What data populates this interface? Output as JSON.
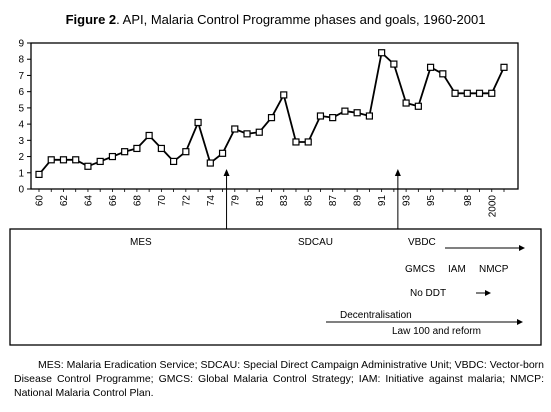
{
  "figure": {
    "label": "Figure 2",
    "title_rest": ". API, Malaria Control Programme phases and goals, 1960-2001"
  },
  "chart_data": {
    "type": "line",
    "title": "Figure 2. API, Malaria Control Programme phases and goals, 1960-2001",
    "xlabel": "",
    "ylabel": "",
    "ylim": [
      0,
      9
    ],
    "yticks": [
      0,
      1,
      2,
      3,
      4,
      5,
      6,
      7,
      8,
      9
    ],
    "grid": false,
    "legend": "none",
    "x": [
      "60",
      "61",
      "62",
      "63",
      "64",
      "65",
      "66",
      "67",
      "68",
      "69",
      "70",
      "71",
      "72",
      "73",
      "74",
      "75",
      "79",
      "80",
      "81",
      "82",
      "83",
      "84",
      "85",
      "86",
      "87",
      "88",
      "89",
      "90",
      "91",
      "92",
      "93",
      "94",
      "95",
      "96",
      "97",
      "98",
      "99",
      "2000",
      "2001"
    ],
    "xtick_labels": [
      "60",
      "62",
      "64",
      "66",
      "68",
      "70",
      "72",
      "74",
      "79",
      "81",
      "83",
      "85",
      "87",
      "89",
      "91",
      "93",
      "95",
      "98",
      "2000"
    ],
    "series": [
      {
        "values": [
          0.9,
          1.8,
          1.8,
          1.8,
          1.4,
          1.7,
          2.0,
          2.3,
          2.5,
          3.3,
          2.5,
          1.7,
          2.3,
          4.1,
          1.6,
          2.2,
          3.7,
          3.4,
          3.5,
          4.4,
          5.8,
          2.9,
          2.9,
          4.5,
          4.4,
          4.8,
          4.7,
          4.5,
          8.4,
          7.7,
          5.3,
          5.1,
          7.5,
          7.1,
          5.9,
          5.9,
          5.9,
          5.9,
          7.5
        ]
      }
    ],
    "arrow_markers_at": [
      "75",
      "92"
    ]
  },
  "phases": {
    "mes": "MES",
    "sdcau": "SDCAU",
    "vbdc": "VBDC",
    "gmcs": "GMCS",
    "iam": "IAM",
    "nmcp": "NMCP",
    "no_ddt": "No DDT",
    "decentralisation": "Decentralisation",
    "law": "Law 100 and reform"
  },
  "footnote": "MES: Malaria Eradication Service; SDCAU: Special Direct Campaign Administrative Unit; VBDC: Vector-born Disease Control Programme; GMCS: Global Malaria Control Strategy; IAM: Initiative against malaria; NMCP: National Malaria Control Plan."
}
